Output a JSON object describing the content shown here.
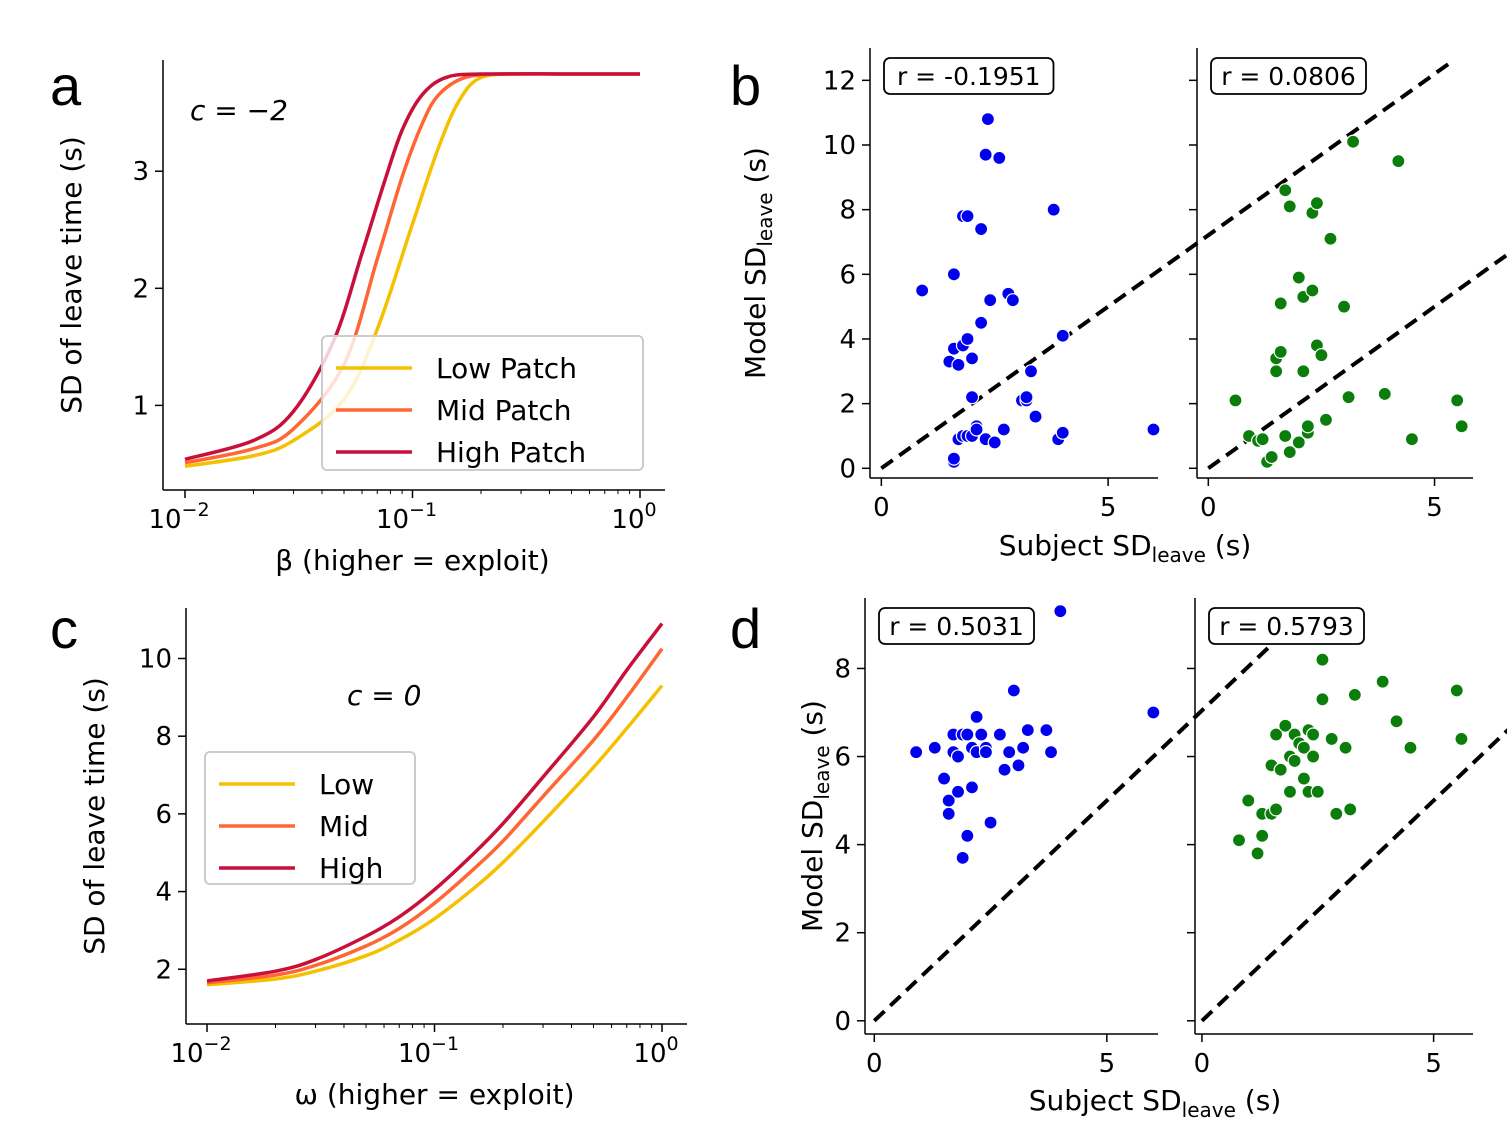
{
  "chart_data": [
    {
      "panel": "a",
      "type": "line",
      "xlabel": "β (higher = exploit)",
      "ylabel": "SD of leave time (s)",
      "x_scale": "log",
      "xlim": [
        0.01,
        1
      ],
      "ylim": [
        0.38,
        3.95
      ],
      "x_ticks": [
        0.01,
        0.1,
        1
      ],
      "x_tick_labels": [
        [
          "10",
          "−2"
        ],
        [
          "10",
          "−1"
        ],
        [
          "10",
          "0"
        ]
      ],
      "y_ticks": [
        1,
        2,
        3
      ],
      "annotation": "c = −2",
      "legend": "lower-right",
      "series": [
        {
          "name": "Low Patch",
          "color": "#f5c000",
          "x": [
            0.01,
            0.02,
            0.03,
            0.05,
            0.07,
            0.1,
            0.13,
            0.16,
            0.2,
            0.3,
            0.5,
            1.0
          ],
          "y": [
            0.48,
            0.57,
            0.7,
            1.05,
            1.65,
            2.55,
            3.2,
            3.6,
            3.8,
            3.83,
            3.83,
            3.83
          ]
        },
        {
          "name": "Mid Patch",
          "color": "#ff6633",
          "x": [
            0.01,
            0.02,
            0.03,
            0.05,
            0.07,
            0.09,
            0.11,
            0.13,
            0.17,
            0.25,
            0.5,
            1.0
          ],
          "y": [
            0.51,
            0.63,
            0.8,
            1.35,
            2.25,
            2.95,
            3.4,
            3.65,
            3.8,
            3.83,
            3.83,
            3.83
          ]
        },
        {
          "name": "High Patch",
          "color": "#c8103a",
          "x": [
            0.01,
            0.02,
            0.03,
            0.045,
            0.06,
            0.075,
            0.09,
            0.11,
            0.14,
            0.2,
            0.5,
            1.0
          ],
          "y": [
            0.54,
            0.7,
            0.95,
            1.55,
            2.3,
            2.9,
            3.35,
            3.65,
            3.8,
            3.83,
            3.83,
            3.83
          ]
        }
      ]
    },
    {
      "panel": "c",
      "type": "line",
      "xlabel": "ω (higher = exploit)",
      "ylabel": "SD of leave time (s)",
      "x_scale": "log",
      "xlim": [
        0.01,
        1
      ],
      "ylim": [
        0.9,
        11.3
      ],
      "x_ticks": [
        0.01,
        0.1,
        1
      ],
      "x_tick_labels": [
        [
          "10",
          "−2"
        ],
        [
          "10",
          "−1"
        ],
        [
          "10",
          "0"
        ]
      ],
      "y_ticks": [
        2,
        4,
        6,
        8,
        10
      ],
      "annotation": "c = 0",
      "legend": "upper-left",
      "series": [
        {
          "name": "Low",
          "color": "#f5c000",
          "x": [
            0.01,
            0.02,
            0.03,
            0.05,
            0.07,
            0.1,
            0.15,
            0.2,
            0.3,
            0.5,
            0.7,
            1.0
          ],
          "y": [
            1.6,
            1.75,
            1.95,
            2.35,
            2.75,
            3.3,
            4.1,
            4.75,
            5.8,
            7.2,
            8.2,
            9.3
          ]
        },
        {
          "name": "Mid",
          "color": "#ff6633",
          "x": [
            0.01,
            0.02,
            0.03,
            0.05,
            0.07,
            0.1,
            0.15,
            0.2,
            0.3,
            0.5,
            0.7,
            1.0
          ],
          "y": [
            1.65,
            1.85,
            2.1,
            2.6,
            3.05,
            3.7,
            4.6,
            5.3,
            6.45,
            7.9,
            9.0,
            10.25
          ]
        },
        {
          "name": "High",
          "color": "#c8103a",
          "x": [
            0.01,
            0.02,
            0.03,
            0.05,
            0.07,
            0.1,
            0.15,
            0.2,
            0.3,
            0.5,
            0.7,
            1.0
          ],
          "y": [
            1.7,
            1.95,
            2.25,
            2.85,
            3.35,
            4.05,
            5.0,
            5.75,
            6.95,
            8.5,
            9.7,
            10.9
          ]
        }
      ]
    },
    {
      "panel": "b",
      "type": "scatter",
      "xlabel": "Subject SD",
      "xlabel_sub": "leave",
      "xlabel_unit": " (s)",
      "ylabel": "Model SD",
      "ylabel_sub": "leave",
      "ylabel_unit": " (s)",
      "ylim": [
        -0.3,
        13.0
      ],
      "y_ticks": [
        0,
        2,
        4,
        6,
        8,
        10,
        12
      ],
      "x_ticks": [
        0,
        5
      ],
      "subplots": [
        {
          "annotation": "r = -0.1951",
          "color": "#0000ee",
          "xlim": [
            -0.25,
            6.1
          ],
          "diagonal_to": 12.5,
          "x": [
            0.9,
            1.5,
            1.6,
            1.6,
            1.6,
            1.6,
            1.7,
            1.7,
            1.8,
            1.8,
            1.8,
            1.9,
            1.9,
            1.9,
            2.0,
            2.0,
            2.0,
            2.1,
            2.1,
            2.2,
            2.2,
            2.3,
            2.3,
            2.35,
            2.4,
            2.5,
            2.6,
            2.7,
            2.8,
            2.9,
            3.1,
            3.2,
            3.2,
            3.3,
            3.4,
            3.8,
            3.9,
            4.0,
            4.0,
            6.0
          ],
          "y": [
            5.5,
            3.3,
            3.7,
            6.0,
            0.2,
            0.3,
            3.2,
            0.9,
            1.0,
            3.8,
            7.8,
            4.0,
            7.8,
            1.0,
            3.4,
            2.2,
            1.0,
            1.3,
            1.2,
            7.4,
            4.5,
            9.7,
            0.9,
            10.8,
            5.2,
            0.8,
            9.6,
            1.2,
            5.4,
            5.2,
            2.1,
            2.1,
            2.2,
            3.0,
            1.6,
            8.0,
            0.9,
            4.1,
            1.1,
            1.2
          ]
        },
        {
          "annotation": "r = 0.0806",
          "color": "#0a7d0a",
          "xlim": [
            -0.25,
            5.85
          ],
          "diagonal_to": 12.5,
          "x": [
            0.6,
            0.9,
            1.1,
            1.2,
            1.3,
            1.4,
            1.5,
            1.5,
            1.6,
            1.6,
            1.7,
            1.7,
            1.8,
            1.8,
            2.0,
            2.0,
            2.1,
            2.1,
            2.2,
            2.2,
            2.3,
            2.3,
            2.4,
            2.4,
            2.5,
            2.6,
            2.7,
            3.0,
            3.1,
            3.2,
            3.9,
            4.2,
            4.5,
            5.5,
            5.6
          ],
          "y": [
            2.1,
            1.0,
            0.85,
            0.9,
            0.2,
            0.35,
            3.4,
            3.0,
            3.6,
            5.1,
            8.6,
            1.0,
            0.5,
            8.1,
            5.9,
            0.8,
            5.3,
            3.0,
            1.1,
            1.3,
            7.9,
            5.5,
            3.8,
            8.2,
            3.5,
            1.5,
            7.1,
            5.0,
            2.2,
            10.1,
            2.3,
            9.5,
            0.9,
            2.1,
            1.3
          ]
        }
      ]
    },
    {
      "panel": "d",
      "type": "scatter",
      "xlabel": "Subject SD",
      "xlabel_sub": "leave",
      "xlabel_unit": " (s)",
      "ylabel": "Model SD",
      "ylabel_sub": "leave",
      "ylabel_unit": " (s)",
      "ylim": [
        -0.3,
        9.6
      ],
      "y_ticks": [
        0,
        2,
        4,
        6,
        8
      ],
      "x_ticks": [
        0,
        5
      ],
      "subplots": [
        {
          "annotation": "r = 0.5031",
          "color": "#0000ee",
          "xlim": [
            -0.2,
            6.1
          ],
          "diagonal_to": 9.3,
          "x": [
            0.9,
            1.3,
            1.5,
            1.6,
            1.6,
            1.7,
            1.7,
            1.8,
            1.8,
            1.8,
            1.9,
            1.9,
            2.0,
            2.0,
            2.1,
            2.1,
            2.2,
            2.2,
            2.3,
            2.4,
            2.4,
            2.5,
            2.7,
            2.8,
            2.9,
            3.0,
            3.1,
            3.2,
            3.3,
            3.7,
            3.8,
            4.0,
            6.0
          ],
          "y": [
            6.1,
            6.2,
            5.5,
            4.7,
            5.0,
            6.5,
            6.1,
            5.2,
            6.0,
            6.0,
            6.5,
            3.7,
            4.2,
            6.5,
            5.3,
            6.2,
            6.9,
            6.1,
            6.5,
            6.2,
            6.1,
            4.5,
            6.5,
            5.7,
            6.1,
            7.5,
            5.8,
            6.2,
            6.6,
            6.6,
            6.1,
            9.3,
            7.0
          ]
        },
        {
          "annotation": "r = 0.5793",
          "color": "#0a7d0a",
          "xlim": [
            -0.15,
            5.85
          ],
          "diagonal_to": 8.3,
          "x": [
            0.8,
            1.0,
            1.2,
            1.3,
            1.3,
            1.5,
            1.5,
            1.6,
            1.6,
            1.7,
            1.8,
            1.9,
            1.9,
            2.0,
            2.0,
            2.1,
            2.2,
            2.2,
            2.3,
            2.3,
            2.4,
            2.4,
            2.5,
            2.6,
            2.6,
            2.8,
            2.9,
            3.1,
            3.2,
            3.3,
            3.9,
            4.2,
            4.5,
            5.5,
            5.6
          ],
          "y": [
            4.1,
            5.0,
            3.8,
            4.2,
            4.7,
            4.7,
            5.8,
            4.8,
            6.5,
            5.7,
            6.7,
            5.2,
            6.0,
            6.5,
            5.9,
            6.3,
            5.5,
            6.2,
            5.2,
            6.6,
            6.0,
            6.5,
            5.2,
            7.3,
            8.2,
            6.4,
            4.7,
            6.2,
            4.8,
            7.4,
            7.7,
            6.8,
            6.2,
            7.5,
            6.4
          ]
        }
      ]
    }
  ],
  "panel_labels": [
    "a",
    "b",
    "c",
    "d"
  ],
  "colors": {
    "axis": "#000000",
    "tick_label": "#000000",
    "diagonal": "#000000",
    "legend_border": "#cccccc"
  }
}
